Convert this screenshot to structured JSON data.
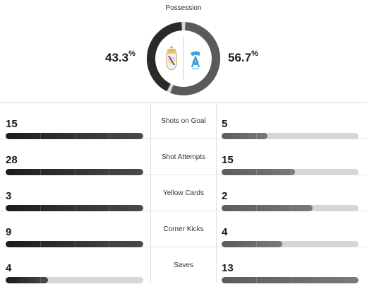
{
  "possession": {
    "title": "Possession",
    "home": {
      "value": "43.3",
      "fraction": 0.433
    },
    "away": {
      "value": "56.7",
      "fraction": 0.567
    },
    "symbol": "%"
  },
  "colors": {
    "home": "#2a2a2a",
    "away": "#5a5a5a",
    "track": "#d6d6d6"
  },
  "teams": {
    "home_logo": "real-madrid-crest-icon",
    "away_logo": "olympique-marseille-crest-icon"
  },
  "stats": [
    {
      "label": "Shots on Goal",
      "home": "15",
      "away": "5"
    },
    {
      "label": "Shot Attempts",
      "home": "28",
      "away": "15"
    },
    {
      "label": "Yellow Cards",
      "home": "3",
      "away": "2"
    },
    {
      "label": "Corner Kicks",
      "home": "9",
      "away": "4"
    },
    {
      "label": "Saves",
      "home": "4",
      "away": "13"
    }
  ]
}
